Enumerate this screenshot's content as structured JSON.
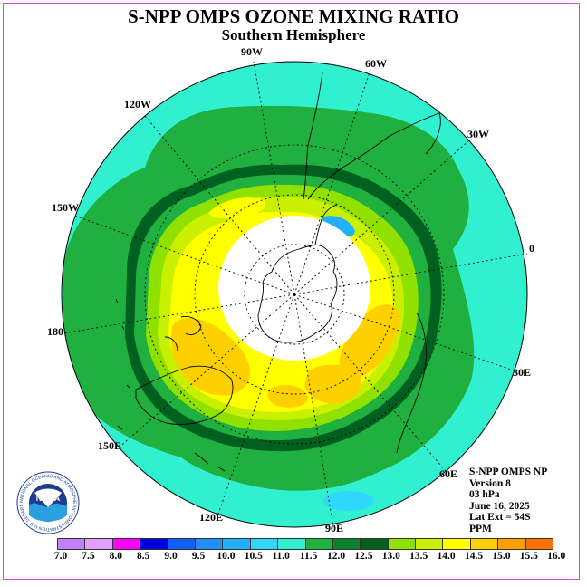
{
  "title": "S-NPP OMPS OZONE MIXING RATIO",
  "subtitle": "Southern Hemisphere",
  "longitude_labels": [
    "90W",
    "60W",
    "30W",
    "0",
    "30E",
    "60E",
    "90E",
    "120E",
    "150E",
    "180",
    "150W",
    "120W"
  ],
  "info": {
    "line1": "S-NPP OMPS NP",
    "line2": "Version 8",
    "line3": "03 hPa",
    "line4": "June 16, 2025",
    "line5": "Lat Ext = 54S",
    "line6": "PPM"
  },
  "logo": {
    "text": "NOAA",
    "ring_text": "NATIONAL OCEANIC AND ATMOSPHERIC ADMINISTRATION U.S. DEPARTMENT OF COMMERCE"
  },
  "colorbar": {
    "ticks": [
      "7.0",
      "7.5",
      "8.0",
      "8.5",
      "9.0",
      "9.5",
      "10.0",
      "10.5",
      "11.0",
      "11.5",
      "12.0",
      "12.5",
      "13.0",
      "13.5",
      "14.0",
      "14.5",
      "15.0",
      "15.5",
      "16.0"
    ],
    "colors": [
      "#c080ff",
      "#e0a0ff",
      "#ff00ff",
      "#0000e0",
      "#1060ff",
      "#2090ff",
      "#20b0ff",
      "#30d8ff",
      "#30f0d0",
      "#20b040",
      "#108030",
      "#006020",
      "#90e000",
      "#c8f000",
      "#ffff00",
      "#ffd000",
      "#ffa000",
      "#ff7000",
      "#ff0000",
      "#c00000",
      "#805030"
    ]
  }
}
